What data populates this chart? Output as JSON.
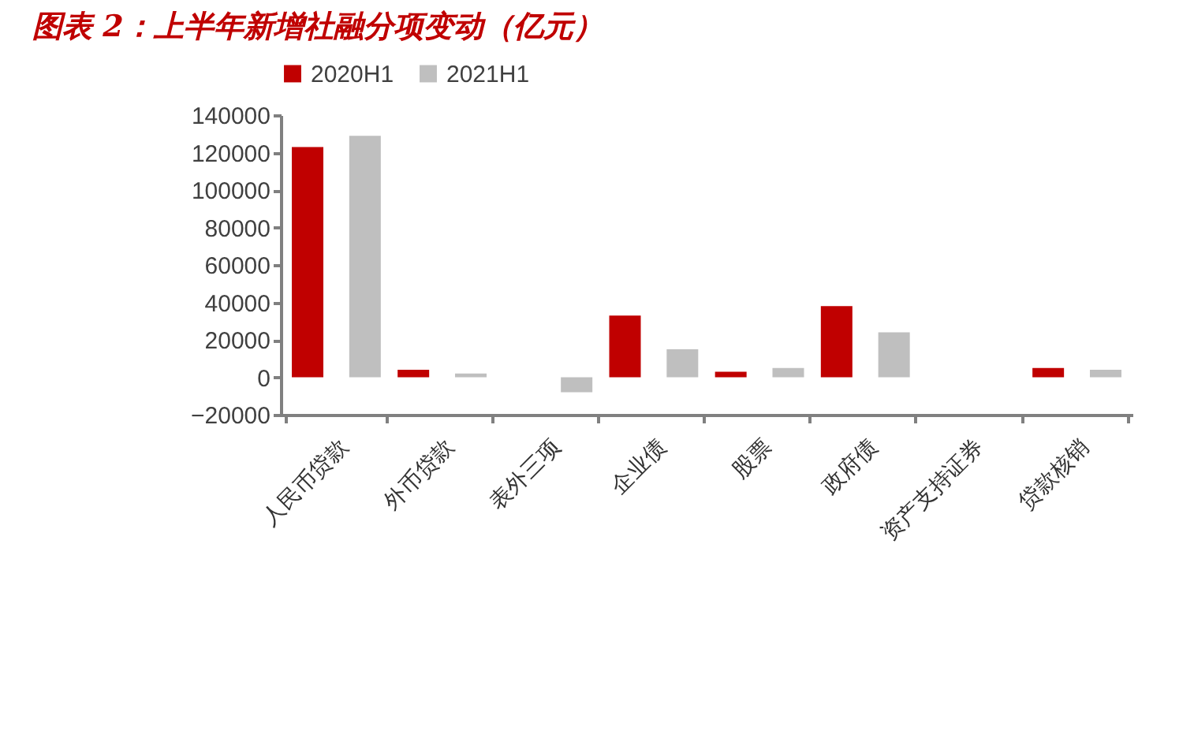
{
  "chart_data": {
    "type": "bar",
    "title": "图表 2：上半年新增社融分项变动（亿元）",
    "categories": [
      "人民币贷款",
      "外币贷款",
      "表外三项",
      "企业债",
      "股票",
      "政府债",
      "资产支持证券",
      "贷款核销"
    ],
    "series": [
      {
        "name": "2020H1",
        "color": "#c00000",
        "values": [
          123000,
          4000,
          0,
          33000,
          3000,
          38000,
          0,
          5000
        ]
      },
      {
        "name": "2021H1",
        "color": "#bfbfbf",
        "values": [
          129000,
          2000,
          -8000,
          15000,
          5000,
          24000,
          0,
          4000
        ]
      }
    ],
    "ylim": [
      -20000,
      140000
    ],
    "yticks": [
      -20000,
      0,
      20000,
      40000,
      60000,
      80000,
      100000,
      120000,
      140000
    ],
    "grid": false,
    "legend": "top"
  }
}
